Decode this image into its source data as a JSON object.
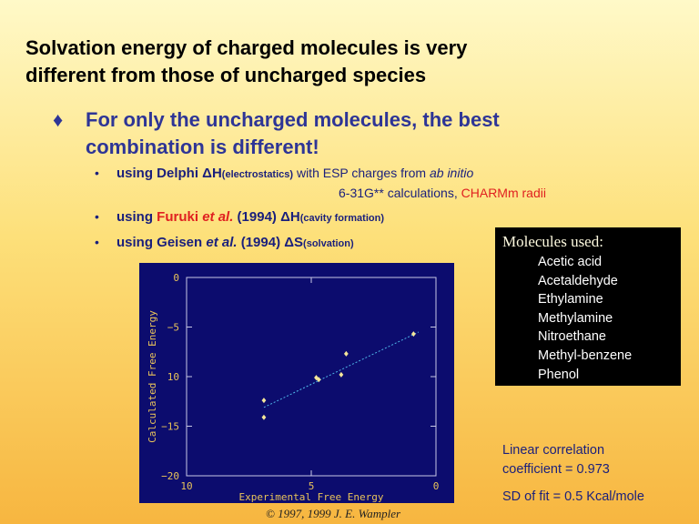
{
  "slide": {
    "title_line1": "Solvation energy of charged molecules is very",
    "title_line2": "different from those of uncharged species",
    "main_bullet_glyph": "♦",
    "main_bullet_line1": "For only the uncharged molecules, the best",
    "main_bullet_line2": "combination is different!",
    "sub_bullet_glyph": "•",
    "sub1": {
      "a": "using Delphi ",
      "delta": "ΔH",
      "sub": "(electrostatics)",
      "b": " with ESP charges from ",
      "c": "ab initio",
      "line2a": "6-31G** calculations, ",
      "line2b": "CHARMm radii"
    },
    "sub2": {
      "a": "using ",
      "b": "Furuki ",
      "c": "et al.",
      "d": " (1994) ",
      "delta": "ΔH",
      "sub": "(cavity formation)"
    },
    "sub3": {
      "a": "using Geisen ",
      "c": "et al.",
      "d": " (1994) ",
      "delta": "ΔS",
      "sub": "(solvation)"
    },
    "molecules_header": "Molecules used:",
    "molecules": [
      "Acetic acid",
      "Acetaldehyde",
      "Ethylamine",
      "Methylamine",
      "Nitroethane",
      "Methyl-benzene",
      "Phenol"
    ],
    "correlation_line1": "Linear correlation",
    "correlation_line2": "coefficient = 0.973",
    "sd": "SD of fit = 0.5 Kcal/mole",
    "copyright": "© 1997, 1999 J. E. Wampler",
    "accent_text_color": "#1a1f7c",
    "highlight_color": "#e02020",
    "plot_background": "#0c0c6e"
  },
  "chart_data": {
    "type": "scatter",
    "xlabel": "Experimental Free Energy",
    "ylabel": "Calculated Free Energy",
    "xlim": [
      -10,
      0
    ],
    "ylim": [
      -20,
      0
    ],
    "x_ticks": [
      -10,
      -5,
      0
    ],
    "x_tick_labels": [
      "10",
      "5",
      "0"
    ],
    "y_ticks": [
      0,
      -5,
      -10,
      -15,
      -20
    ],
    "y_tick_labels": [
      "0",
      "−5",
      "10",
      "−15",
      "−20"
    ],
    "points": [
      {
        "x": -6.9,
        "y": -12.4
      },
      {
        "x": -6.9,
        "y": -14.1
      },
      {
        "x": -4.8,
        "y": -10.1
      },
      {
        "x": -4.7,
        "y": -10.3
      },
      {
        "x": -3.8,
        "y": -9.8
      },
      {
        "x": -3.6,
        "y": -7.7
      },
      {
        "x": -0.9,
        "y": -5.7
      }
    ],
    "fit_line": {
      "x1": -6.9,
      "y1": -13.1,
      "x2": -0.7,
      "y2": -5.5
    },
    "grid": false
  }
}
